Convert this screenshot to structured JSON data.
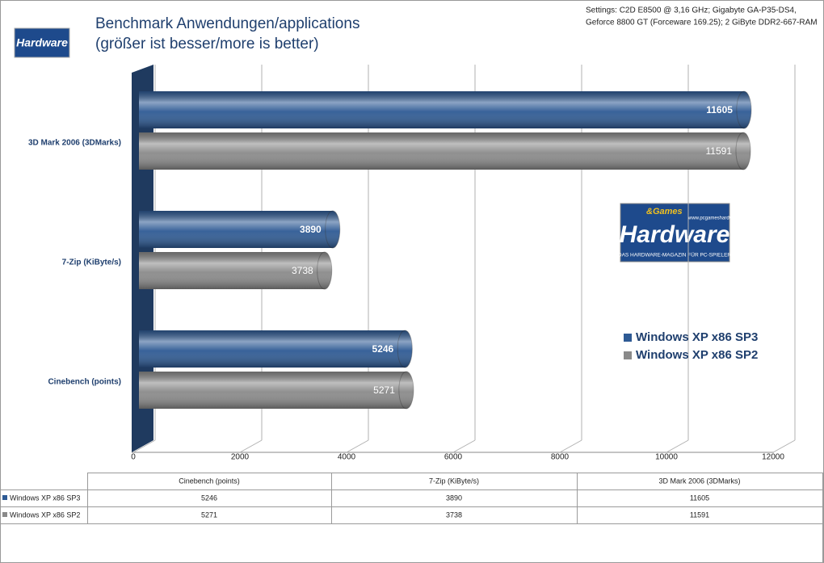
{
  "chart_data": {
    "type": "bar",
    "orientation": "horizontal",
    "title": "Benchmark Anwendungen/applications",
    "subtitle": "(größer ist besser/more is better)",
    "annotation": [
      "Settings: C2D E8500 @ 3,16 GHz; Gigabyte  GA-P35-DS4,",
      "Geforce 8800 GT (Forceware 169.25); 2 GiByte DDR2-667-RAM"
    ],
    "categories": [
      "Cinebench (points)",
      "7-Zip (KiByte/s)",
      "3D Mark 2006 (3DMarks)"
    ],
    "series": [
      {
        "name": "Windows XP x86 SP3",
        "color": "#2e5a94",
        "values": [
          5246,
          3890,
          11605
        ]
      },
      {
        "name": "Windows XP x86 SP2",
        "color": "#8a8a8a",
        "values": [
          5271,
          3738,
          11591
        ]
      }
    ],
    "xlim": [
      0,
      12000
    ],
    "xticks": [
      0,
      2000,
      4000,
      6000,
      8000,
      10000,
      12000
    ],
    "grid": true,
    "legend": "right",
    "data_table": true
  },
  "logo": {
    "games": "&Games",
    "brand": "Hardware",
    "url": "www.pcgameshardware.de",
    "tagline": "DAS HARDWARE-MAGAZIN FÜR PC-SPIELER"
  }
}
